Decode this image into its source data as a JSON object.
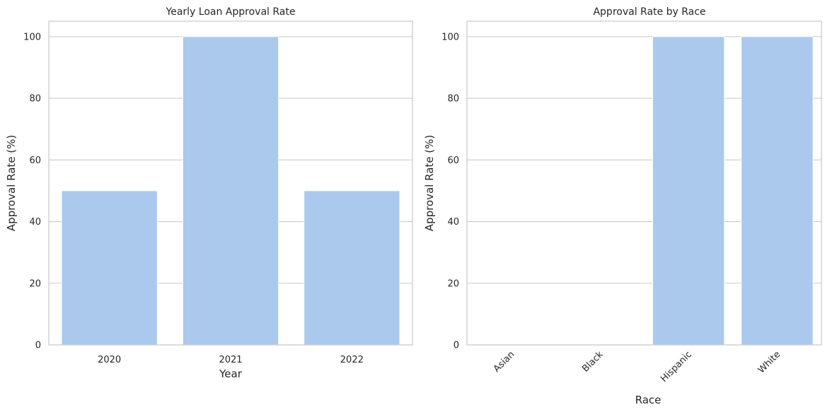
{
  "chart_data": [
    {
      "type": "bar",
      "title": "Yearly Loan Approval Rate",
      "xlabel": "Year",
      "ylabel": "Approval Rate (%)",
      "categories": [
        "2020",
        "2021",
        "2022"
      ],
      "values": [
        50,
        100,
        50
      ],
      "ylim": [
        0,
        105
      ],
      "yticks": [
        0,
        20,
        40,
        60,
        80,
        100
      ],
      "grid": "horizontal",
      "bar_color": "#abc9ed",
      "xtick_rotation": 0
    },
    {
      "type": "bar",
      "title": "Approval Rate by Race",
      "xlabel": "Race",
      "ylabel": "Approval Rate (%)",
      "categories": [
        "Asian",
        "Black",
        "Hispanic",
        "White"
      ],
      "values": [
        0,
        0,
        100,
        100
      ],
      "ylim": [
        0,
        105
      ],
      "yticks": [
        0,
        20,
        40,
        60,
        80,
        100
      ],
      "grid": "horizontal",
      "bar_color": "#abc9ed",
      "xtick_rotation": 45
    }
  ]
}
